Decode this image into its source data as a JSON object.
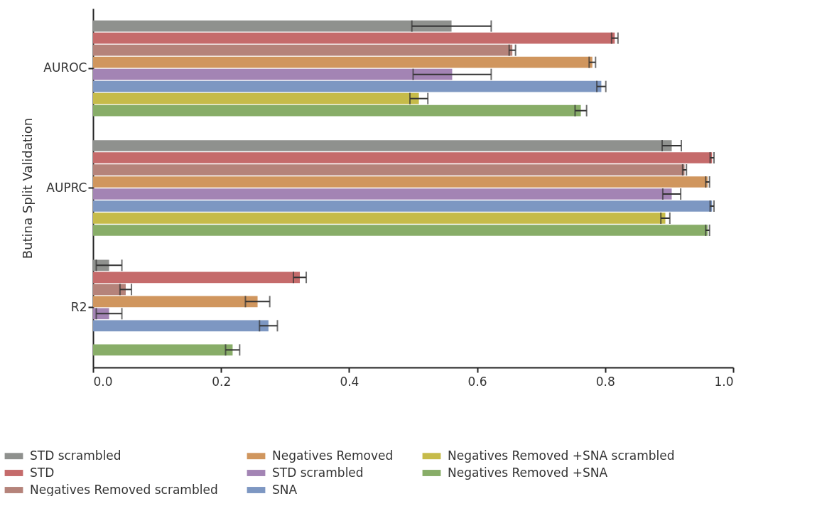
{
  "chart_data": {
    "type": "bar",
    "orientation": "horizontal",
    "ylabel": "Butina Split Validation",
    "categories": [
      "AUROC",
      "AUPRC",
      "R2"
    ],
    "xlim": [
      0,
      1
    ],
    "xticks": [
      {
        "value": 0,
        "label": "0.0"
      },
      {
        "value": 0.2,
        "label": "0.2"
      },
      {
        "value": 0.4,
        "label": "0.4"
      },
      {
        "value": 0.6,
        "label": "0.6"
      },
      {
        "value": 0.8,
        "label": "0.8"
      },
      {
        "value": 1,
        "label": "1.0"
      }
    ],
    "grid": false,
    "legend": "bottom",
    "series": [
      {
        "name": "STD scrambled",
        "color": "#8f918e",
        "values": [
          0.56,
          0.904,
          0.025
        ],
        "errors": [
          0.062,
          0.015,
          0.02
        ]
      },
      {
        "name": "STD",
        "color": "#c56b6b",
        "values": [
          0.815,
          0.967,
          0.323
        ],
        "errors": [
          0.005,
          0.003,
          0.01
        ]
      },
      {
        "name": "Negatives Removed scrambled",
        "color": "#b5837a",
        "values": [
          0.655,
          0.924,
          0.051
        ],
        "errors": [
          0.005,
          0.003,
          0.009
        ]
      },
      {
        "name": "Negatives Removed",
        "color": "#d0965e",
        "values": [
          0.78,
          0.96,
          0.257
        ],
        "errors": [
          0.005,
          0.003,
          0.019
        ]
      },
      {
        "name": "STD scrambled",
        "color": "#a384b4",
        "values": [
          0.561,
          0.904,
          0.025
        ],
        "errors": [
          0.061,
          0.014,
          0.02
        ]
      },
      {
        "name": "SNA",
        "color": "#7d97c2",
        "values": [
          0.794,
          0.967,
          0.274
        ],
        "errors": [
          0.007,
          0.003,
          0.014
        ]
      },
      {
        "name": "Negatives Removed +SNA scrambled",
        "color": "#c6bb4a",
        "values": [
          0.509,
          0.894,
          null
        ],
        "errors": [
          0.014,
          0.007,
          null
        ]
      },
      {
        "name": "Negatives Removed +SNA",
        "color": "#88ad68",
        "values": [
          0.762,
          0.96,
          0.218
        ],
        "errors": [
          0.009,
          0.003,
          0.011
        ]
      }
    ]
  }
}
